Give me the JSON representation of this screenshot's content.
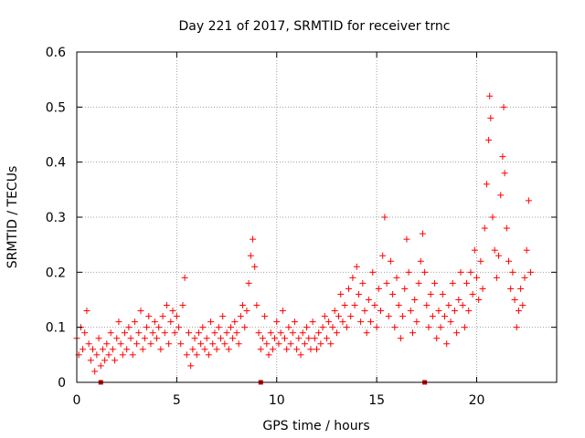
{
  "chart_data": {
    "type": "scatter",
    "title": "Day 221 of 2017, SRMTID for receiver trnc",
    "xlabel": "GPS time / hours",
    "ylabel": "SRMTID / TECUs",
    "xlim": [
      0,
      24
    ],
    "ylim": [
      0,
      0.6
    ],
    "x_ticks": [
      0,
      5,
      10,
      15,
      20
    ],
    "x_tick_labels": [
      "0",
      "5",
      "10",
      "15",
      "20"
    ],
    "y_ticks": [
      0,
      0.1,
      0.2,
      0.3,
      0.4,
      0.5,
      0.6
    ],
    "y_tick_labels": [
      "0",
      "0.1",
      "0.2",
      "0.3",
      "0.4",
      "0.5",
      "0.6"
    ],
    "grid": true,
    "marker": "+",
    "color": "#ff0000",
    "gap_markers_x": [
      1.2,
      9.2,
      17.4
    ],
    "series": [
      {
        "name": "SRMTID",
        "points": [
          [
            0.0,
            0.08
          ],
          [
            0.1,
            0.05
          ],
          [
            0.2,
            0.1
          ],
          [
            0.3,
            0.06
          ],
          [
            0.4,
            0.09
          ],
          [
            0.5,
            0.13
          ],
          [
            0.6,
            0.07
          ],
          [
            0.7,
            0.04
          ],
          [
            0.8,
            0.06
          ],
          [
            0.9,
            0.02
          ],
          [
            1.0,
            0.05
          ],
          [
            1.1,
            0.08
          ],
          [
            1.2,
            0.03
          ],
          [
            1.3,
            0.06
          ],
          [
            1.4,
            0.04
          ],
          [
            1.5,
            0.07
          ],
          [
            1.6,
            0.05
          ],
          [
            1.7,
            0.09
          ],
          [
            1.8,
            0.06
          ],
          [
            1.9,
            0.04
          ],
          [
            2.0,
            0.08
          ],
          [
            2.1,
            0.11
          ],
          [
            2.2,
            0.07
          ],
          [
            2.3,
            0.05
          ],
          [
            2.4,
            0.09
          ],
          [
            2.5,
            0.06
          ],
          [
            2.6,
            0.1
          ],
          [
            2.7,
            0.08
          ],
          [
            2.8,
            0.05
          ],
          [
            2.9,
            0.11
          ],
          [
            3.0,
            0.07
          ],
          [
            3.1,
            0.09
          ],
          [
            3.2,
            0.13
          ],
          [
            3.3,
            0.06
          ],
          [
            3.4,
            0.08
          ],
          [
            3.5,
            0.1
          ],
          [
            3.6,
            0.12
          ],
          [
            3.7,
            0.07
          ],
          [
            3.8,
            0.09
          ],
          [
            3.9,
            0.11
          ],
          [
            4.0,
            0.08
          ],
          [
            4.1,
            0.1
          ],
          [
            4.2,
            0.06
          ],
          [
            4.3,
            0.12
          ],
          [
            4.4,
            0.09
          ],
          [
            4.5,
            0.14
          ],
          [
            4.6,
            0.07
          ],
          [
            4.7,
            0.11
          ],
          [
            4.8,
            0.13
          ],
          [
            4.9,
            0.09
          ],
          [
            5.0,
            0.12
          ],
          [
            5.1,
            0.1
          ],
          [
            5.2,
            0.07
          ],
          [
            5.3,
            0.14
          ],
          [
            5.4,
            0.19
          ],
          [
            5.5,
            0.05
          ],
          [
            5.6,
            0.09
          ],
          [
            5.7,
            0.03
          ],
          [
            5.8,
            0.06
          ],
          [
            5.9,
            0.08
          ],
          [
            6.0,
            0.05
          ],
          [
            6.1,
            0.09
          ],
          [
            6.2,
            0.07
          ],
          [
            6.3,
            0.1
          ],
          [
            6.4,
            0.06
          ],
          [
            6.5,
            0.08
          ],
          [
            6.6,
            0.05
          ],
          [
            6.7,
            0.11
          ],
          [
            6.8,
            0.07
          ],
          [
            6.9,
            0.09
          ],
          [
            7.0,
            0.06
          ],
          [
            7.1,
            0.1
          ],
          [
            7.2,
            0.08
          ],
          [
            7.3,
            0.12
          ],
          [
            7.4,
            0.07
          ],
          [
            7.5,
            0.09
          ],
          [
            7.6,
            0.06
          ],
          [
            7.7,
            0.1
          ],
          [
            7.8,
            0.08
          ],
          [
            7.9,
            0.11
          ],
          [
            8.0,
            0.09
          ],
          [
            8.1,
            0.07
          ],
          [
            8.2,
            0.12
          ],
          [
            8.3,
            0.14
          ],
          [
            8.4,
            0.1
          ],
          [
            8.5,
            0.13
          ],
          [
            8.6,
            0.18
          ],
          [
            8.7,
            0.23
          ],
          [
            8.8,
            0.26
          ],
          [
            8.9,
            0.21
          ],
          [
            9.0,
            0.14
          ],
          [
            9.1,
            0.09
          ],
          [
            9.2,
            0.06
          ],
          [
            9.3,
            0.08
          ],
          [
            9.4,
            0.12
          ],
          [
            9.5,
            0.07
          ],
          [
            9.6,
            0.05
          ],
          [
            9.7,
            0.09
          ],
          [
            9.8,
            0.06
          ],
          [
            9.9,
            0.08
          ],
          [
            10.0,
            0.11
          ],
          [
            10.1,
            0.07
          ],
          [
            10.2,
            0.09
          ],
          [
            10.3,
            0.13
          ],
          [
            10.4,
            0.08
          ],
          [
            10.5,
            0.06
          ],
          [
            10.6,
            0.1
          ],
          [
            10.7,
            0.07
          ],
          [
            10.8,
            0.09
          ],
          [
            10.9,
            0.11
          ],
          [
            11.0,
            0.06
          ],
          [
            11.1,
            0.08
          ],
          [
            11.2,
            0.05
          ],
          [
            11.3,
            0.09
          ],
          [
            11.4,
            0.07
          ],
          [
            11.5,
            0.1
          ],
          [
            11.6,
            0.08
          ],
          [
            11.7,
            0.06
          ],
          [
            11.8,
            0.11
          ],
          [
            11.9,
            0.08
          ],
          [
            12.0,
            0.06
          ],
          [
            12.1,
            0.09
          ],
          [
            12.2,
            0.07
          ],
          [
            12.3,
            0.1
          ],
          [
            12.4,
            0.12
          ],
          [
            12.5,
            0.08
          ],
          [
            12.6,
            0.11
          ],
          [
            12.7,
            0.07
          ],
          [
            12.8,
            0.1
          ],
          [
            12.9,
            0.13
          ],
          [
            13.0,
            0.09
          ],
          [
            13.1,
            0.12
          ],
          [
            13.2,
            0.16
          ],
          [
            13.3,
            0.11
          ],
          [
            13.4,
            0.14
          ],
          [
            13.5,
            0.1
          ],
          [
            13.6,
            0.17
          ],
          [
            13.7,
            0.12
          ],
          [
            13.8,
            0.19
          ],
          [
            13.9,
            0.14
          ],
          [
            14.0,
            0.21
          ],
          [
            14.1,
            0.16
          ],
          [
            14.2,
            0.11
          ],
          [
            14.3,
            0.18
          ],
          [
            14.4,
            0.13
          ],
          [
            14.5,
            0.09
          ],
          [
            14.6,
            0.15
          ],
          [
            14.7,
            0.11
          ],
          [
            14.8,
            0.2
          ],
          [
            14.9,
            0.14
          ],
          [
            15.0,
            0.1
          ],
          [
            15.1,
            0.17
          ],
          [
            15.2,
            0.13
          ],
          [
            15.3,
            0.23
          ],
          [
            15.4,
            0.3
          ],
          [
            15.5,
            0.18
          ],
          [
            15.6,
            0.12
          ],
          [
            15.7,
            0.22
          ],
          [
            15.8,
            0.16
          ],
          [
            15.9,
            0.1
          ],
          [
            16.0,
            0.19
          ],
          [
            16.1,
            0.14
          ],
          [
            16.2,
            0.08
          ],
          [
            16.3,
            0.12
          ],
          [
            16.4,
            0.17
          ],
          [
            16.5,
            0.26
          ],
          [
            16.6,
            0.2
          ],
          [
            16.7,
            0.13
          ],
          [
            16.8,
            0.09
          ],
          [
            16.9,
            0.15
          ],
          [
            17.0,
            0.11
          ],
          [
            17.1,
            0.18
          ],
          [
            17.2,
            0.22
          ],
          [
            17.3,
            0.27
          ],
          [
            17.4,
            0.2
          ],
          [
            17.5,
            0.14
          ],
          [
            17.6,
            0.1
          ],
          [
            17.7,
            0.16
          ],
          [
            17.8,
            0.12
          ],
          [
            17.9,
            0.18
          ],
          [
            18.0,
            0.08
          ],
          [
            18.1,
            0.13
          ],
          [
            18.2,
            0.1
          ],
          [
            18.3,
            0.16
          ],
          [
            18.4,
            0.12
          ],
          [
            18.5,
            0.07
          ],
          [
            18.6,
            0.14
          ],
          [
            18.7,
            0.11
          ],
          [
            18.8,
            0.18
          ],
          [
            18.9,
            0.13
          ],
          [
            19.0,
            0.09
          ],
          [
            19.1,
            0.15
          ],
          [
            19.2,
            0.2
          ],
          [
            19.3,
            0.14
          ],
          [
            19.4,
            0.1
          ],
          [
            19.5,
            0.18
          ],
          [
            19.6,
            0.13
          ],
          [
            19.7,
            0.2
          ],
          [
            19.8,
            0.16
          ],
          [
            19.9,
            0.24
          ],
          [
            20.0,
            0.19
          ],
          [
            20.1,
            0.15
          ],
          [
            20.2,
            0.22
          ],
          [
            20.3,
            0.17
          ],
          [
            20.4,
            0.28
          ],
          [
            20.5,
            0.36
          ],
          [
            20.6,
            0.44
          ],
          [
            20.65,
            0.52
          ],
          [
            20.7,
            0.48
          ],
          [
            20.8,
            0.3
          ],
          [
            20.9,
            0.24
          ],
          [
            21.0,
            0.19
          ],
          [
            21.1,
            0.23
          ],
          [
            21.2,
            0.34
          ],
          [
            21.3,
            0.41
          ],
          [
            21.35,
            0.5
          ],
          [
            21.4,
            0.38
          ],
          [
            21.5,
            0.28
          ],
          [
            21.6,
            0.22
          ],
          [
            21.7,
            0.17
          ],
          [
            21.8,
            0.2
          ],
          [
            21.9,
            0.15
          ],
          [
            22.0,
            0.1
          ],
          [
            22.1,
            0.13
          ],
          [
            22.2,
            0.17
          ],
          [
            22.3,
            0.14
          ],
          [
            22.4,
            0.19
          ],
          [
            22.5,
            0.24
          ],
          [
            22.6,
            0.33
          ],
          [
            22.7,
            0.2
          ]
        ]
      }
    ]
  }
}
